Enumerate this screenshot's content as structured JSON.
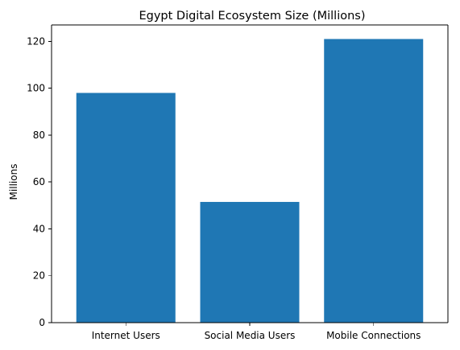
{
  "chart_data": {
    "type": "bar",
    "title": "Egypt Digital Ecosystem Size (Millions)",
    "xlabel": "",
    "ylabel": "Millions",
    "categories": [
      "Internet Users",
      "Social Media Users",
      "Mobile Connections"
    ],
    "values": [
      98,
      51.5,
      121
    ],
    "ylim": [
      0,
      127
    ],
    "yticks": [
      0,
      20,
      40,
      60,
      80,
      100,
      120
    ],
    "bar_color": "#1f77b4",
    "grid": false,
    "legend": "none"
  }
}
